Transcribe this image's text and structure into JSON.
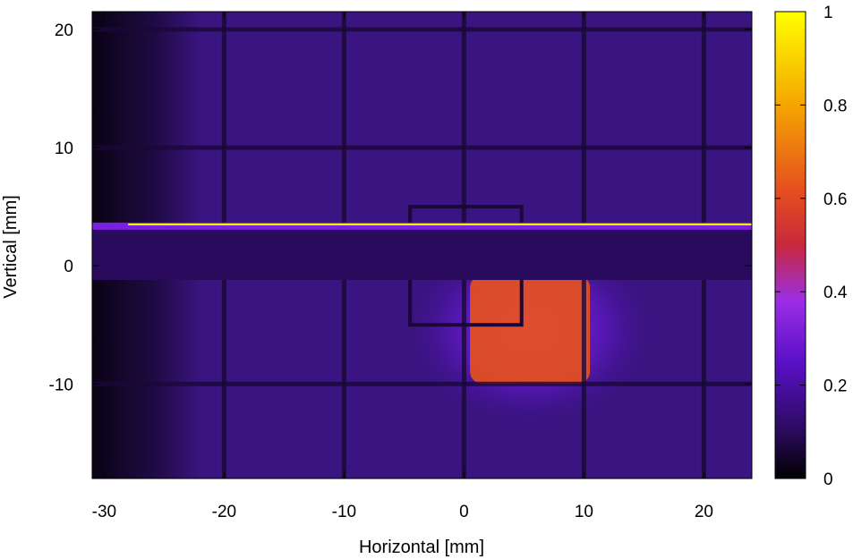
{
  "chart_data": {
    "type": "heatmap",
    "xlabel": "Horizontal [mm]",
    "ylabel": "Vertical [mm]",
    "xlim": [
      -31,
      24
    ],
    "ylim": [
      -18,
      21.5
    ],
    "x_ticks": [
      -30,
      -20,
      -10,
      0,
      10,
      20
    ],
    "y_ticks": [
      -10,
      0,
      10,
      20
    ],
    "colorbar": {
      "range": [
        0,
        1
      ],
      "ticks": [
        0,
        0.2,
        0.4,
        0.6,
        0.8,
        1
      ],
      "colormap": [
        "#000000",
        "#2a0a5c",
        "#5a10c8",
        "#9b2ee6",
        "#c8283c",
        "#e6501e",
        "#f5a500",
        "#ffff00"
      ]
    },
    "features": {
      "background_intensity": 0.15,
      "dark_band": {
        "y_range": [
          -1.2,
          3.2
        ],
        "intensity": 0.0
      },
      "bright_line": {
        "y": 3.5,
        "x_range": [
          -28,
          24
        ],
        "intensity": 1.0
      },
      "hot_spot": {
        "x_range": [
          0.5,
          10.5
        ],
        "y_range": [
          -10,
          -0.8
        ],
        "peak_intensity": 0.55
      },
      "grid_lines_x": [
        -20,
        -10,
        0,
        10,
        20
      ],
      "grid_lines_y": [
        -10,
        10,
        20
      ],
      "inner_box": {
        "x_range": [
          -4.5,
          4.8
        ],
        "y_range": [
          -5,
          5
        ]
      }
    }
  }
}
